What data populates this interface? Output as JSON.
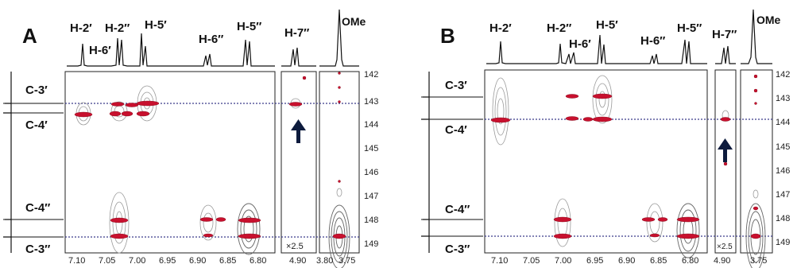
{
  "panels": [
    {
      "letter": "A",
      "proton_labels": [
        "H-2′",
        "H-6′",
        "H-2″",
        "H-5′",
        "H-6″",
        "H-5″",
        "H-7″",
        "OMe"
      ],
      "carbon_labels": [
        "C-3′",
        "C-4′",
        "C-4″",
        "C-3″"
      ],
      "x_ticks_main": [
        "7.10",
        "7.05",
        "7.00",
        "6.95",
        "6.90",
        "6.85",
        "6.80"
      ],
      "x_ticks_h7": [
        "4.90"
      ],
      "x_ticks_ome": [
        "3.80",
        "3.75"
      ],
      "y_ticks": [
        "142",
        "143",
        "144",
        "145",
        "146",
        "147",
        "148",
        "149"
      ],
      "scale_note": "×2.5"
    },
    {
      "letter": "B",
      "proton_labels": [
        "H-2′",
        "H-2″",
        "H-6′",
        "H-5′",
        "H-6″",
        "H-5″",
        "H-7″",
        "OMe"
      ],
      "carbon_labels": [
        "C-3′",
        "C-4′",
        "C-4″",
        "C-3″"
      ],
      "x_ticks_main": [
        "7.10",
        "7.05",
        "7.00",
        "6.95",
        "6.90",
        "6.85",
        "6.80"
      ],
      "x_ticks_h7": [
        "4.90"
      ],
      "x_ticks_ome": [
        "3.75"
      ],
      "y_ticks": [
        "142",
        "143",
        "144",
        "145",
        "146",
        "147",
        "148",
        "149"
      ],
      "scale_note": "×2.5"
    }
  ],
  "colors": {
    "cross_peak": "#c8102e",
    "contour": "#9a9a9a",
    "dashed_line": "#3a3a8a",
    "arrow": "#0d1b3d"
  }
}
